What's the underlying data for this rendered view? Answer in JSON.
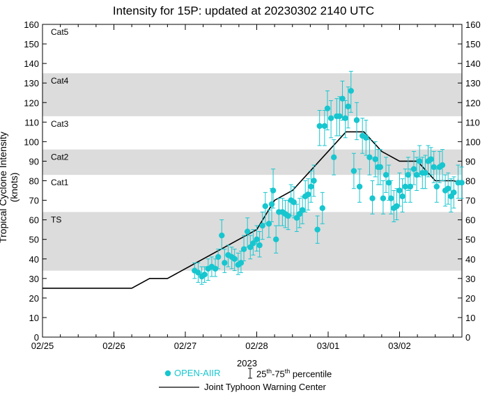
{
  "chart_data": {
    "type": "scatter",
    "title": "Intensity for 15P: updated at 20230302 2140 UTC",
    "ylabel": "Tropical Cyclone Intensity (knots)",
    "xlabel": "2023",
    "ylim": [
      0,
      160
    ],
    "yticks": [
      0,
      10,
      20,
      30,
      40,
      50,
      60,
      70,
      80,
      90,
      100,
      110,
      120,
      130,
      140,
      150,
      160
    ],
    "xlim_days": [
      0,
      5.89
    ],
    "xticks": [
      {
        "label": "02/25",
        "day": 0
      },
      {
        "label": "02/26",
        "day": 1
      },
      {
        "label": "02/27",
        "day": 2
      },
      {
        "label": "02/28",
        "day": 3
      },
      {
        "label": "03/01",
        "day": 4
      },
      {
        "label": "03/02",
        "day": 5
      }
    ],
    "bands": [
      {
        "label": "TS",
        "from": 34,
        "to": 64,
        "shaded": true
      },
      {
        "label": "Cat1",
        "from": 64,
        "to": 83,
        "shaded": false
      },
      {
        "label": "Cat2",
        "from": 83,
        "to": 96,
        "shaded": true
      },
      {
        "label": "Cat3",
        "from": 96,
        "to": 113,
        "shaded": false
      },
      {
        "label": "Cat4",
        "from": 113,
        "to": 135,
        "shaded": true
      },
      {
        "label": "Cat5",
        "from": 135,
        "to": 160,
        "shaded": false
      }
    ],
    "series": [
      {
        "name": "OPEN-AIIR",
        "color": "#17c6cf",
        "points": [
          {
            "x": 2.13,
            "y": 34,
            "lo": 30,
            "hi": 38
          },
          {
            "x": 2.18,
            "y": 33,
            "lo": 28,
            "hi": 38
          },
          {
            "x": 2.23,
            "y": 31,
            "lo": 27,
            "hi": 36
          },
          {
            "x": 2.27,
            "y": 32,
            "lo": 28,
            "hi": 36
          },
          {
            "x": 2.32,
            "y": 35,
            "lo": 29,
            "hi": 40
          },
          {
            "x": 2.37,
            "y": 36,
            "lo": 31,
            "hi": 41
          },
          {
            "x": 2.42,
            "y": 35,
            "lo": 31,
            "hi": 40
          },
          {
            "x": 2.46,
            "y": 41,
            "lo": 35,
            "hi": 45
          },
          {
            "x": 2.51,
            "y": 52,
            "lo": 45,
            "hi": 60
          },
          {
            "x": 2.55,
            "y": 38,
            "lo": 33,
            "hi": 45
          },
          {
            "x": 2.6,
            "y": 42,
            "lo": 36,
            "hi": 47
          },
          {
            "x": 2.65,
            "y": 41,
            "lo": 35,
            "hi": 46
          },
          {
            "x": 2.69,
            "y": 40,
            "lo": 34,
            "hi": 45
          },
          {
            "x": 2.74,
            "y": 37,
            "lo": 32,
            "hi": 43
          },
          {
            "x": 2.78,
            "y": 38,
            "lo": 33,
            "hi": 44
          },
          {
            "x": 2.82,
            "y": 45,
            "lo": 39,
            "hi": 52
          },
          {
            "x": 2.87,
            "y": 54,
            "lo": 46,
            "hi": 61
          },
          {
            "x": 2.91,
            "y": 46,
            "lo": 40,
            "hi": 52
          },
          {
            "x": 2.95,
            "y": 48,
            "lo": 42,
            "hi": 55
          },
          {
            "x": 3.0,
            "y": 50,
            "lo": 44,
            "hi": 57
          },
          {
            "x": 3.04,
            "y": 47,
            "lo": 41,
            "hi": 54
          },
          {
            "x": 3.08,
            "y": 57,
            "lo": 50,
            "hi": 64
          },
          {
            "x": 3.12,
            "y": 67,
            "lo": 58,
            "hi": 74
          },
          {
            "x": 3.17,
            "y": 58,
            "lo": 51,
            "hi": 65
          },
          {
            "x": 3.21,
            "y": 68,
            "lo": 59,
            "hi": 76
          },
          {
            "x": 3.23,
            "y": 75,
            "lo": 66,
            "hi": 86
          },
          {
            "x": 3.27,
            "y": 50,
            "lo": 43,
            "hi": 57
          },
          {
            "x": 3.31,
            "y": 64,
            "lo": 57,
            "hi": 71
          },
          {
            "x": 3.36,
            "y": 64,
            "lo": 57,
            "hi": 71
          },
          {
            "x": 3.4,
            "y": 63,
            "lo": 56,
            "hi": 70
          },
          {
            "x": 3.44,
            "y": 62,
            "lo": 55,
            "hi": 70
          },
          {
            "x": 3.48,
            "y": 70,
            "lo": 62,
            "hi": 78
          },
          {
            "x": 3.52,
            "y": 69,
            "lo": 61,
            "hi": 77
          },
          {
            "x": 3.56,
            "y": 61,
            "lo": 54,
            "hi": 68
          },
          {
            "x": 3.6,
            "y": 63,
            "lo": 56,
            "hi": 71
          },
          {
            "x": 3.64,
            "y": 65,
            "lo": 58,
            "hi": 72
          },
          {
            "x": 3.68,
            "y": 72,
            "lo": 64,
            "hi": 80
          },
          {
            "x": 3.72,
            "y": 73,
            "lo": 65,
            "hi": 81
          },
          {
            "x": 3.76,
            "y": 77,
            "lo": 69,
            "hi": 85
          },
          {
            "x": 3.8,
            "y": 80,
            "lo": 72,
            "hi": 88
          },
          {
            "x": 3.85,
            "y": 55,
            "lo": 48,
            "hi": 62
          },
          {
            "x": 3.88,
            "y": 108,
            "lo": 98,
            "hi": 116
          },
          {
            "x": 3.92,
            "y": 66,
            "lo": 58,
            "hi": 74
          },
          {
            "x": 3.95,
            "y": 108,
            "lo": 98,
            "hi": 116
          },
          {
            "x": 3.99,
            "y": 117,
            "lo": 106,
            "hi": 126
          },
          {
            "x": 4.04,
            "y": 112,
            "lo": 102,
            "hi": 121
          },
          {
            "x": 4.08,
            "y": 92,
            "lo": 83,
            "hi": 101
          },
          {
            "x": 4.12,
            "y": 113,
            "lo": 103,
            "hi": 122
          },
          {
            "x": 4.16,
            "y": 113,
            "lo": 103,
            "hi": 123
          },
          {
            "x": 4.2,
            "y": 122,
            "lo": 111,
            "hi": 131
          },
          {
            "x": 4.24,
            "y": 112,
            "lo": 102,
            "hi": 121
          },
          {
            "x": 4.28,
            "y": 118,
            "lo": 107,
            "hi": 128
          },
          {
            "x": 4.32,
            "y": 126,
            "lo": 115,
            "hi": 136
          },
          {
            "x": 4.36,
            "y": 85,
            "lo": 76,
            "hi": 94
          },
          {
            "x": 4.4,
            "y": 111,
            "lo": 101,
            "hi": 120
          },
          {
            "x": 4.44,
            "y": 77,
            "lo": 69,
            "hi": 86
          },
          {
            "x": 4.48,
            "y": 103,
            "lo": 94,
            "hi": 112
          },
          {
            "x": 4.53,
            "y": 102,
            "lo": 93,
            "hi": 111
          },
          {
            "x": 4.58,
            "y": 92,
            "lo": 83,
            "hi": 101
          },
          {
            "x": 4.62,
            "y": 71,
            "lo": 63,
            "hi": 80
          },
          {
            "x": 4.66,
            "y": 91,
            "lo": 82,
            "hi": 100
          },
          {
            "x": 4.7,
            "y": 87,
            "lo": 78,
            "hi": 96
          },
          {
            "x": 4.73,
            "y": 87,
            "lo": 78,
            "hi": 96
          },
          {
            "x": 4.77,
            "y": 71,
            "lo": 63,
            "hi": 80
          },
          {
            "x": 4.81,
            "y": 83,
            "lo": 74,
            "hi": 92
          },
          {
            "x": 4.85,
            "y": 79,
            "lo": 70,
            "hi": 88
          },
          {
            "x": 4.88,
            "y": 71,
            "lo": 63,
            "hi": 80
          },
          {
            "x": 4.92,
            "y": 66,
            "lo": 59,
            "hi": 75
          },
          {
            "x": 4.96,
            "y": 67,
            "lo": 60,
            "hi": 76
          },
          {
            "x": 5.0,
            "y": 75,
            "lo": 67,
            "hi": 84
          },
          {
            "x": 5.04,
            "y": 72,
            "lo": 64,
            "hi": 81
          },
          {
            "x": 5.08,
            "y": 77,
            "lo": 69,
            "hi": 86
          },
          {
            "x": 5.12,
            "y": 83,
            "lo": 75,
            "hi": 92
          },
          {
            "x": 5.15,
            "y": 77,
            "lo": 69,
            "hi": 86
          },
          {
            "x": 5.2,
            "y": 86,
            "lo": 78,
            "hi": 95
          },
          {
            "x": 5.24,
            "y": 83,
            "lo": 75,
            "hi": 92
          },
          {
            "x": 5.28,
            "y": 90,
            "lo": 82,
            "hi": 98
          },
          {
            "x": 5.32,
            "y": 84,
            "lo": 76,
            "hi": 92
          },
          {
            "x": 5.36,
            "y": 84,
            "lo": 76,
            "hi": 93
          },
          {
            "x": 5.4,
            "y": 90,
            "lo": 82,
            "hi": 98
          },
          {
            "x": 5.44,
            "y": 91,
            "lo": 83,
            "hi": 97
          },
          {
            "x": 5.48,
            "y": 87,
            "lo": 79,
            "hi": 95
          },
          {
            "x": 5.52,
            "y": 77,
            "lo": 69,
            "hi": 86
          },
          {
            "x": 5.56,
            "y": 87,
            "lo": 79,
            "hi": 95
          },
          {
            "x": 5.6,
            "y": 88,
            "lo": 80,
            "hi": 96
          },
          {
            "x": 5.64,
            "y": 75,
            "lo": 67,
            "hi": 83
          },
          {
            "x": 5.68,
            "y": 76,
            "lo": 68,
            "hi": 84
          },
          {
            "x": 5.72,
            "y": 72,
            "lo": 64,
            "hi": 81
          },
          {
            "x": 5.76,
            "y": 74,
            "lo": 66,
            "hi": 82
          },
          {
            "x": 5.82,
            "y": 79,
            "lo": 71,
            "hi": 88
          },
          {
            "x": 5.87,
            "y": 79,
            "lo": 71,
            "hi": 87
          }
        ]
      },
      {
        "name": "Joint Typhoon Warning Center",
        "color": "#000000",
        "type": "line",
        "points": [
          {
            "x": 0.0,
            "y": 25
          },
          {
            "x": 1.25,
            "y": 25
          },
          {
            "x": 1.5,
            "y": 30
          },
          {
            "x": 1.75,
            "y": 30
          },
          {
            "x": 3.0,
            "y": 55
          },
          {
            "x": 3.25,
            "y": 70
          },
          {
            "x": 3.5,
            "y": 75
          },
          {
            "x": 4.25,
            "y": 105
          },
          {
            "x": 4.5,
            "y": 105
          },
          {
            "x": 4.75,
            "y": 95
          },
          {
            "x": 5.0,
            "y": 90
          },
          {
            "x": 5.25,
            "y": 90
          },
          {
            "x": 5.5,
            "y": 80
          },
          {
            "x": 5.75,
            "y": 80
          },
          {
            "x": 5.89,
            "y": 79
          }
        ]
      }
    ],
    "legend": {
      "open_aiir": "OPEN-AIIR",
      "percentile_pre": "25",
      "percentile_sup1": "th",
      "percentile_mid": "-75",
      "percentile_sup2": "th",
      "percentile_post": " percentile",
      "jtwc": "Joint Typhoon Warning Center"
    }
  }
}
